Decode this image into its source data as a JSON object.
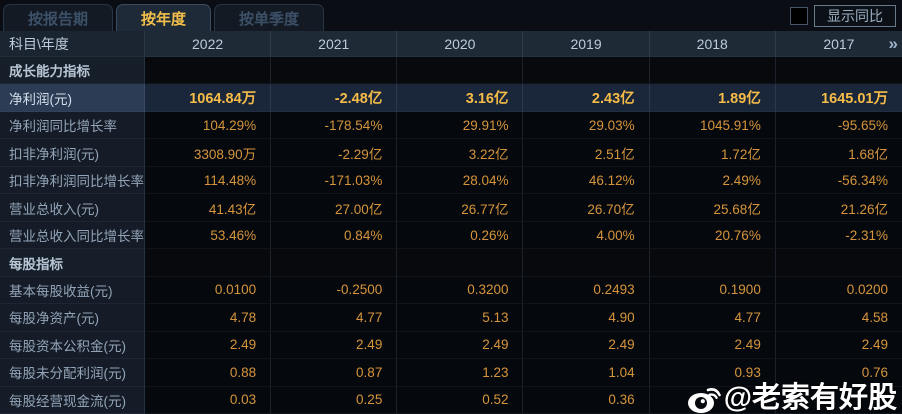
{
  "tabs": [
    {
      "label": "按报告期",
      "active": false
    },
    {
      "label": "按年度",
      "active": true
    },
    {
      "label": "按单季度",
      "active": false
    }
  ],
  "controls": {
    "show_yoy_label": "显示同比",
    "show_yoy_checked": false
  },
  "table": {
    "corner_header": "科目\\年度",
    "year_columns": [
      "2022",
      "2021",
      "2020",
      "2019",
      "2018",
      "2017"
    ],
    "more_columns_icon": "»",
    "rows": [
      {
        "type": "section",
        "label": "成长能力指标",
        "values": [
          "",
          "",
          "",
          "",
          "",
          ""
        ]
      },
      {
        "type": "data",
        "highlight": true,
        "label": "净利润(元)",
        "values": [
          "1064.84万",
          "-2.48亿",
          "3.16亿",
          "2.43亿",
          "1.89亿",
          "1645.01万"
        ]
      },
      {
        "type": "data",
        "highlight": false,
        "label": "净利润同比增长率",
        "values": [
          "104.29%",
          "-178.54%",
          "29.91%",
          "29.03%",
          "1045.91%",
          "-95.65%"
        ]
      },
      {
        "type": "data",
        "highlight": false,
        "label": "扣非净利润(元)",
        "values": [
          "3308.90万",
          "-2.29亿",
          "3.22亿",
          "2.51亿",
          "1.72亿",
          "1.68亿"
        ]
      },
      {
        "type": "data",
        "highlight": false,
        "label": "扣非净利润同比增长率",
        "values": [
          "114.48%",
          "-171.03%",
          "28.04%",
          "46.12%",
          "2.49%",
          "-56.34%"
        ]
      },
      {
        "type": "data",
        "highlight": false,
        "label": "营业总收入(元)",
        "values": [
          "41.43亿",
          "27.00亿",
          "26.77亿",
          "26.70亿",
          "25.68亿",
          "21.26亿"
        ]
      },
      {
        "type": "data",
        "highlight": false,
        "label": "营业总收入同比增长率",
        "values": [
          "53.46%",
          "0.84%",
          "0.26%",
          "4.00%",
          "20.76%",
          "-2.31%"
        ]
      },
      {
        "type": "section",
        "label": "每股指标",
        "values": [
          "",
          "",
          "",
          "",
          "",
          ""
        ]
      },
      {
        "type": "data",
        "highlight": false,
        "label": "基本每股收益(元)",
        "values": [
          "0.0100",
          "-0.2500",
          "0.3200",
          "0.2493",
          "0.1900",
          "0.0200"
        ]
      },
      {
        "type": "data",
        "highlight": false,
        "label": "每股净资产(元)",
        "values": [
          "4.78",
          "4.77",
          "5.13",
          "4.90",
          "4.77",
          "4.58"
        ]
      },
      {
        "type": "data",
        "highlight": false,
        "label": "每股资本公积金(元)",
        "values": [
          "2.49",
          "2.49",
          "2.49",
          "2.49",
          "2.49",
          "2.49"
        ]
      },
      {
        "type": "data",
        "highlight": false,
        "label": "每股未分配利润(元)",
        "values": [
          "0.88",
          "0.87",
          "1.23",
          "1.04",
          "0.93",
          "0.76"
        ]
      },
      {
        "type": "data",
        "highlight": false,
        "label": "每股经营现金流(元)",
        "values": [
          "0.03",
          "0.25",
          "0.52",
          "0.36",
          "",
          ""
        ]
      }
    ]
  },
  "watermark": {
    "icon": "weibo-icon",
    "text": "@老索有好股"
  },
  "colors": {
    "value_gold": "#d6953d",
    "highlight_gold": "#f5bc49",
    "tab_active_text": "#f2c04a",
    "header_bg": "#1f2a37",
    "highlight_row_bg": "#1a2639",
    "page_bg": "#05080c"
  }
}
